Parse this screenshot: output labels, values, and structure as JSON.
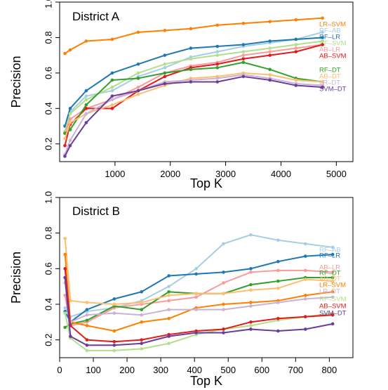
{
  "chart_data": [
    {
      "type": "line",
      "title": "District A",
      "xlabel": "Top K",
      "ylabel": "Precision",
      "xlim": [
        0,
        5300
      ],
      "ylim": [
        0.1,
        1.0
      ],
      "x_ticks": [
        1000,
        2000,
        3000,
        4000,
        5000
      ],
      "x_tick_labels": [
        "1000",
        "2000",
        "3000",
        "4000",
        "5000"
      ],
      "y_ticks": [
        0.2,
        0.4,
        0.6,
        0.8,
        1.0
      ],
      "y_tick_labels": [
        "0.2",
        "0.4",
        "0.6",
        "0.8",
        "1.0"
      ],
      "grid": false,
      "legend": "right-side labels",
      "x": [
        95,
        190,
        480,
        950,
        1420,
        1900,
        2370,
        2850,
        3320,
        3800,
        4270,
        4750
      ],
      "series": [
        {
          "name": "LR–SVM",
          "color": "#ff7f00",
          "values": [
            0.71,
            0.73,
            0.78,
            0.79,
            0.83,
            0.84,
            0.85,
            0.87,
            0.88,
            0.89,
            0.9,
            0.91
          ]
        },
        {
          "name": "RF–AB",
          "color": "#a6cee3",
          "values": [
            0.3,
            0.38,
            0.47,
            0.5,
            0.58,
            0.63,
            0.69,
            0.72,
            0.75,
            0.77,
            0.79,
            0.83
          ]
        },
        {
          "name": "RF–LR",
          "color": "#1f78b4",
          "values": [
            0.3,
            0.4,
            0.5,
            0.6,
            0.65,
            0.7,
            0.74,
            0.75,
            0.76,
            0.78,
            0.79,
            0.8
          ]
        },
        {
          "name": "RF–SVM",
          "color": "#b2df8a",
          "values": [
            0.27,
            0.37,
            0.45,
            0.52,
            0.6,
            0.65,
            0.68,
            0.7,
            0.72,
            0.74,
            0.76,
            0.78
          ]
        },
        {
          "name": "AB–LR",
          "color": "#fb9a99",
          "values": [
            0.26,
            0.34,
            0.4,
            0.45,
            0.52,
            0.6,
            0.64,
            0.66,
            0.7,
            0.72,
            0.74,
            0.76
          ]
        },
        {
          "name": "AB–SVM",
          "color": "#e31a1c",
          "values": [
            0.19,
            0.31,
            0.4,
            0.4,
            0.5,
            0.58,
            0.63,
            0.65,
            0.68,
            0.7,
            0.72,
            0.76
          ]
        },
        {
          "name": "RF–DT",
          "color": "#33a02c",
          "values": [
            0.26,
            0.28,
            0.42,
            0.56,
            0.57,
            0.6,
            0.62,
            0.63,
            0.66,
            0.62,
            0.57,
            0.55
          ]
        },
        {
          "name": "AB–DT",
          "color": "#fdbf6f",
          "values": [
            0.23,
            0.32,
            0.37,
            0.42,
            0.48,
            0.53,
            0.57,
            0.58,
            0.6,
            0.59,
            0.56,
            0.55
          ]
        },
        {
          "name": "LR–DT",
          "color": "#cab2d6",
          "values": [
            0.14,
            0.22,
            0.37,
            0.45,
            0.5,
            0.55,
            0.56,
            0.57,
            0.59,
            0.57,
            0.54,
            0.53
          ]
        },
        {
          "name": "SVM–DT",
          "color": "#6a3d9a",
          "values": [
            0.13,
            0.19,
            0.32,
            0.47,
            0.5,
            0.54,
            0.55,
            0.55,
            0.58,
            0.56,
            0.53,
            0.52
          ]
        }
      ]
    },
    {
      "type": "line",
      "title": "District B",
      "xlabel": "Top K",
      "ylabel": "Precision",
      "xlim": [
        0,
        870
      ],
      "ylim": [
        0.1,
        1.0
      ],
      "x_ticks": [
        0,
        100,
        200,
        300,
        400,
        500,
        600,
        700,
        800
      ],
      "x_tick_labels": [
        "0",
        "100",
        "200",
        "300",
        "400",
        "500",
        "600",
        "700",
        "800"
      ],
      "y_ticks": [
        0.2,
        0.4,
        0.6,
        0.8,
        1.0
      ],
      "y_tick_labels": [
        "0.2",
        "0.4",
        "0.6",
        "0.8",
        "1.0"
      ],
      "grid": false,
      "legend": "right-side labels",
      "x": [
        16,
        32,
        81,
        162,
        243,
        324,
        405,
        486,
        567,
        648,
        729,
        810
      ],
      "series": [
        {
          "name": "RF–AB",
          "color": "#a6cee3",
          "values": [
            0.38,
            0.33,
            0.36,
            0.38,
            0.42,
            0.5,
            0.6,
            0.74,
            0.79,
            0.76,
            0.74,
            0.72
          ]
        },
        {
          "name": "RF–LR",
          "color": "#1f78b4",
          "values": [
            0.36,
            0.3,
            0.37,
            0.43,
            0.47,
            0.56,
            0.57,
            0.58,
            0.6,
            0.64,
            0.67,
            0.68
          ]
        },
        {
          "name": "AB–LR",
          "color": "#fb9a99",
          "values": [
            0.45,
            0.28,
            0.3,
            0.38,
            0.4,
            0.42,
            0.44,
            0.52,
            0.58,
            0.59,
            0.59,
            0.58
          ]
        },
        {
          "name": "RF–DT",
          "color": "#33a02c",
          "values": [
            0.27,
            0.29,
            0.31,
            0.39,
            0.37,
            0.47,
            0.46,
            0.46,
            0.51,
            0.53,
            0.55,
            0.55
          ]
        },
        {
          "name": "AB–DT",
          "color": "#fdbf6f",
          "values": [
            0.77,
            0.42,
            0.41,
            0.4,
            0.41,
            0.45,
            0.46,
            0.46,
            0.48,
            0.49,
            0.54,
            0.53
          ]
        },
        {
          "name": "LR–SVM",
          "color": "#ff7f00",
          "values": [
            0.68,
            0.3,
            0.28,
            0.25,
            0.3,
            0.32,
            0.38,
            0.4,
            0.41,
            0.42,
            0.45,
            0.47
          ]
        },
        {
          "name": "LR–DT",
          "color": "#cab2d6",
          "values": [
            0.52,
            0.3,
            0.34,
            0.35,
            0.34,
            0.37,
            0.37,
            0.37,
            0.39,
            0.41,
            0.43,
            0.44
          ]
        },
        {
          "name": "RF–SVM",
          "color": "#b2df8a",
          "values": [
            0.35,
            0.21,
            0.14,
            0.14,
            0.15,
            0.18,
            0.23,
            0.26,
            0.28,
            0.31,
            0.33,
            0.35
          ]
        },
        {
          "name": "AB–SVM",
          "color": "#e31a1c",
          "values": [
            0.6,
            0.28,
            0.2,
            0.19,
            0.2,
            0.23,
            0.25,
            0.26,
            0.3,
            0.32,
            0.33,
            0.34
          ]
        },
        {
          "name": "SVM–DT",
          "color": "#6a3d9a",
          "values": [
            0.55,
            0.22,
            0.17,
            0.17,
            0.18,
            0.22,
            0.24,
            0.24,
            0.26,
            0.25,
            0.26,
            0.29
          ]
        }
      ]
    }
  ]
}
